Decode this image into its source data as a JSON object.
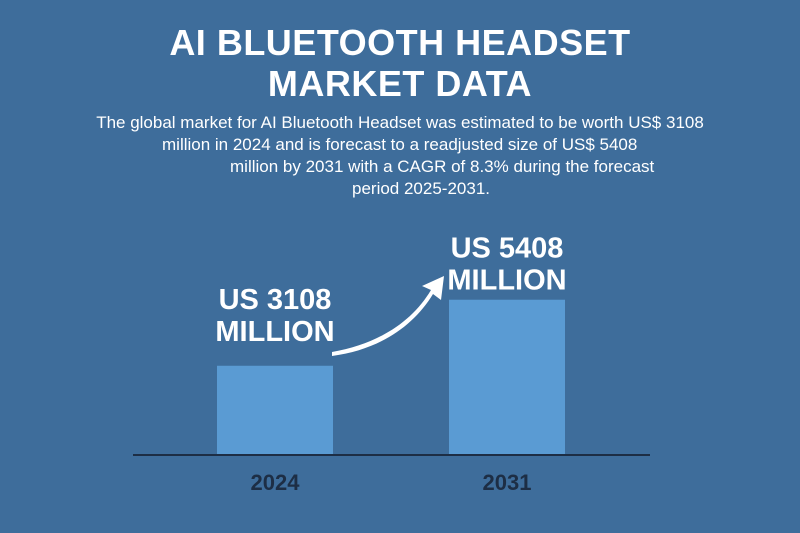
{
  "title": {
    "line1": "AI BLUETOOTH HEADSET",
    "line2": "MARKET DATA"
  },
  "description": {
    "line1": "The global market for AI Bluetooth Headset was estimated to be worth US$ 3108",
    "line2": "million in 2024 and is forecast to a readjusted size of US$ 5408",
    "line3": "million by 2031 with a CAGR of 8.3% during the forecast",
    "line4": "period 2025-2031."
  },
  "colors": {
    "background": "#3e6d9b",
    "bar": "#5a9bd3",
    "axis": "#1d2e45",
    "text": "#ffffff"
  },
  "icons": [
    "curved-growth-arrow-icon"
  ],
  "chart_data": {
    "type": "bar",
    "categories": [
      "2024",
      "2031"
    ],
    "values": [
      3108,
      5408
    ],
    "data_labels": [
      [
        "US 3108",
        "MILLION"
      ],
      [
        "US 5408",
        "MILLION"
      ]
    ],
    "title": "AI BLUETOOTH HEADSET MARKET DATA",
    "xlabel": "",
    "ylabel": "",
    "grid": false,
    "legend": "none"
  }
}
